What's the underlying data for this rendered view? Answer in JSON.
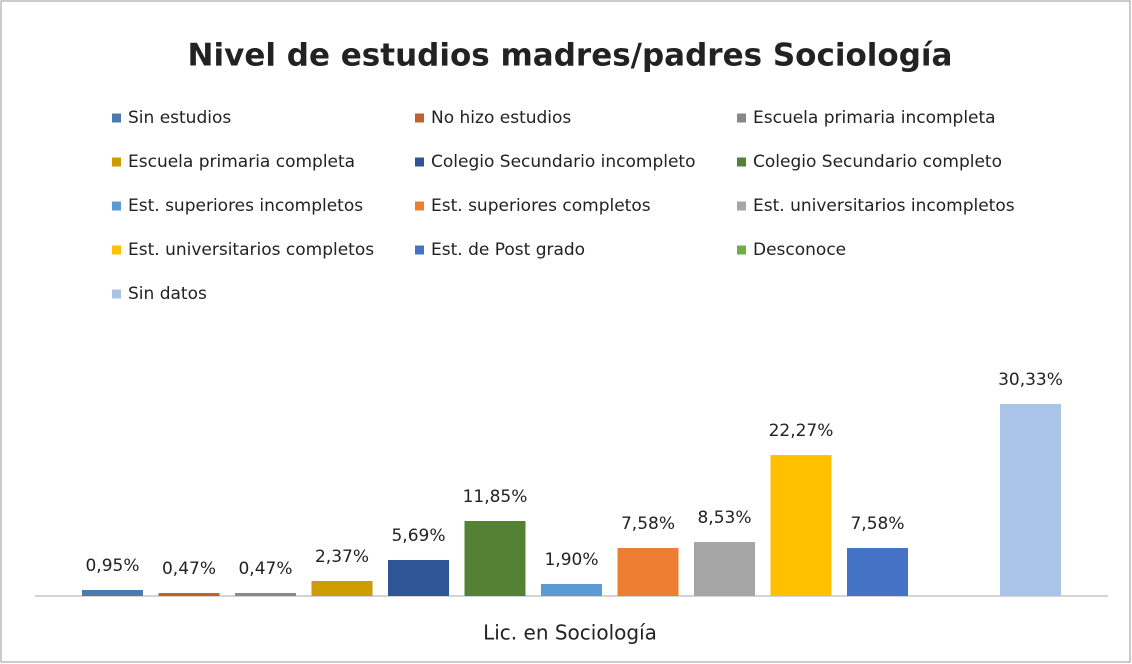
{
  "chart_data": {
    "type": "bar",
    "title": "Nivel de estudios madres/padres Sociología",
    "categories": [
      "Lic. en Sociología"
    ],
    "ylim": [
      0,
      35
    ],
    "series": [
      {
        "name": "Sin estudios",
        "color": "#4a7bb0",
        "values": [
          0.95
        ],
        "value_labels": [
          "0,95%"
        ]
      },
      {
        "name": "No hizo estudios",
        "color": "#c0622b",
        "values": [
          0.47
        ],
        "value_labels": [
          "0,47%"
        ]
      },
      {
        "name": "Escuela primaria incompleta",
        "color": "#888888",
        "values": [
          0.47
        ],
        "value_labels": [
          "0,47%"
        ]
      },
      {
        "name": "Escuela primaria completa",
        "color": "#cc9c00",
        "values": [
          2.37
        ],
        "value_labels": [
          "2,37%"
        ]
      },
      {
        "name": "Colegio Secundario incompleto",
        "color": "#2f5597",
        "values": [
          5.69
        ],
        "value_labels": [
          "5,69%"
        ]
      },
      {
        "name": "Colegio Secundario completo",
        "color": "#548235",
        "values": [
          11.85
        ],
        "value_labels": [
          "11,85%"
        ]
      },
      {
        "name": "Est. superiores incompletos",
        "color": "#5b9bd5",
        "values": [
          1.9
        ],
        "value_labels": [
          "1,90%"
        ]
      },
      {
        "name": "Est. superiores completos",
        "color": "#ed7d31",
        "values": [
          7.58
        ],
        "value_labels": [
          "7,58%"
        ]
      },
      {
        "name": "Est. universitarios incompletos",
        "color": "#a5a5a5",
        "values": [
          8.53
        ],
        "value_labels": [
          "8,53%"
        ]
      },
      {
        "name": "Est. universitarios completos",
        "color": "#ffc000",
        "values": [
          22.27
        ],
        "value_labels": [
          "22,27%"
        ]
      },
      {
        "name": "Est. de Post grado",
        "color": "#4472c4",
        "values": [
          7.58
        ],
        "value_labels": [
          "7,58%"
        ]
      },
      {
        "name": "Desconoce",
        "color": "#70ad47",
        "values": [
          null
        ],
        "value_labels": [
          null
        ]
      },
      {
        "name": "Sin datos",
        "color": "#a9c4e6",
        "values": [
          30.33
        ],
        "value_labels": [
          "30,33%"
        ]
      }
    ]
  }
}
